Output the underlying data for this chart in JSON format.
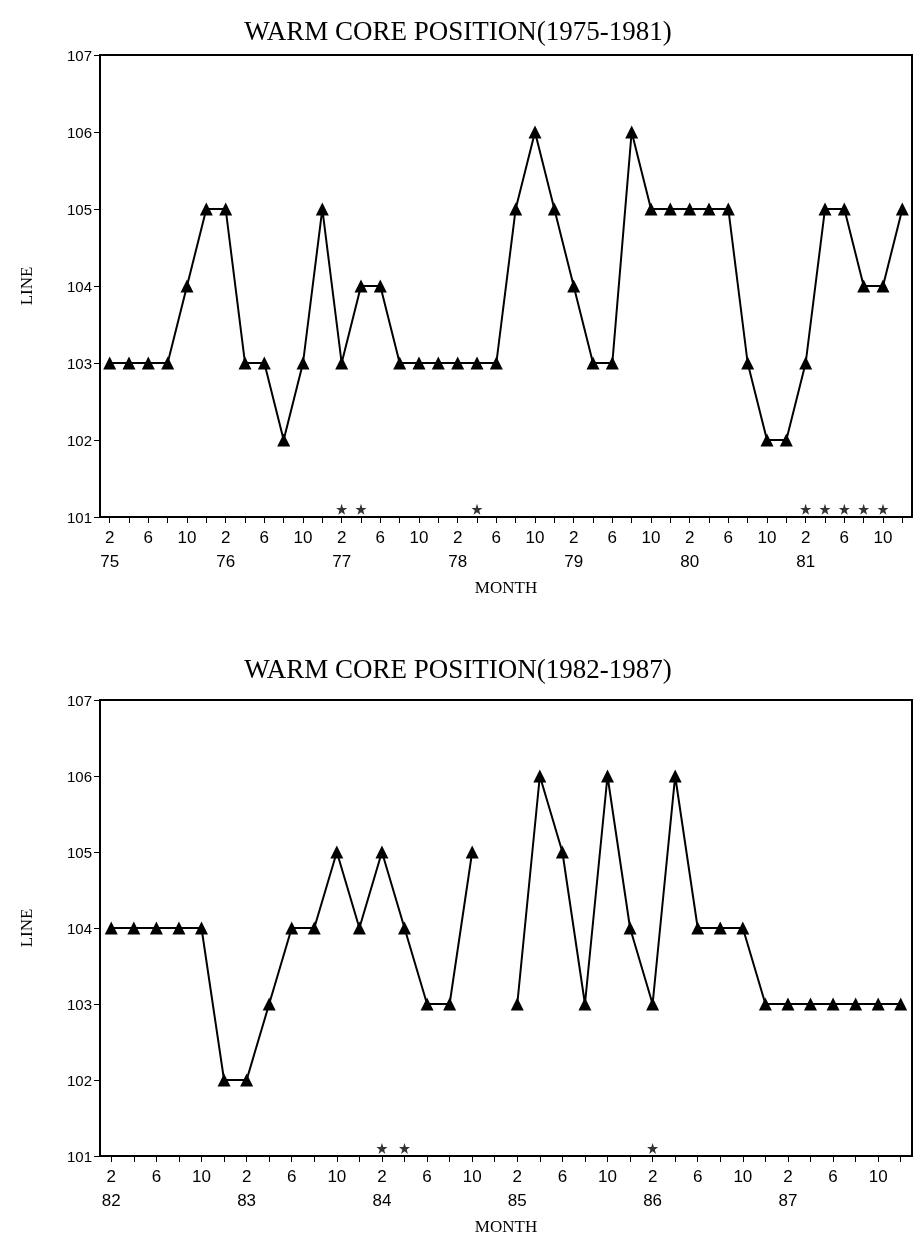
{
  "chart_data": [
    {
      "type": "line",
      "title": "WARM CORE POSITION(1975-1981)",
      "xlabel": "MONTH",
      "ylabel": "LINE",
      "marker": "triangle",
      "line_style": "solid",
      "grid": false,
      "x": [
        "1975-02",
        "1975-04",
        "1975-06",
        "1975-08",
        "1975-10",
        "1975-12",
        "1976-02",
        "1976-04",
        "1976-06",
        "1976-08",
        "1976-10",
        "1976-12",
        "1977-02",
        "1977-04",
        "1977-06",
        "1977-08",
        "1977-10",
        "1977-12",
        "1978-02",
        "1978-04",
        "1978-06",
        "1978-08",
        "1978-10",
        "1978-12",
        "1979-02",
        "1979-04",
        "1979-06",
        "1979-08",
        "1979-10",
        "1979-12",
        "1980-02",
        "1980-04",
        "1980-06",
        "1980-08",
        "1980-10",
        "1980-12",
        "1981-02",
        "1981-04",
        "1981-06",
        "1981-08",
        "1981-10",
        "1981-12"
      ],
      "series": [
        {
          "color": "#000000",
          "values": [
            103,
            103,
            103,
            103,
            104,
            105,
            105,
            103,
            103,
            102,
            103,
            105,
            103,
            104,
            104,
            103,
            103,
            103,
            103,
            103,
            103,
            105,
            106,
            105,
            104,
            103,
            103,
            106,
            105,
            105,
            105,
            105,
            105,
            103,
            102,
            102,
            103,
            105,
            105,
            104,
            104,
            105
          ]
        },
        {
          "type": "scatter",
          "marker": "star",
          "color": "#000000",
          "x": [
            "1977-02",
            "1977-04",
            "1978-04",
            "1981-02",
            "1981-04",
            "1981-06",
            "1981-08",
            "1981-10"
          ],
          "values": [
            101.1,
            101.1,
            101.1,
            101.1,
            101.1,
            101.1,
            101.1,
            101.1
          ]
        }
      ],
      "xlim": [
        "1975-01",
        "1982-01"
      ],
      "ylim": [
        101,
        107
      ],
      "yticks": [
        101,
        102,
        103,
        104,
        105,
        106,
        107
      ],
      "xticks": [
        {
          "value": "1975-02",
          "label": "2\n75"
        },
        {
          "value": "1975-04",
          "label": null
        },
        {
          "value": "1975-06",
          "label": "6"
        },
        {
          "value": "1975-08",
          "label": null
        },
        {
          "value": "1975-10",
          "label": "10"
        },
        {
          "value": "1975-12",
          "label": null
        },
        {
          "value": "1976-02",
          "label": "2\n76"
        },
        {
          "value": "1976-04",
          "label": null
        },
        {
          "value": "1976-06",
          "label": "6"
        },
        {
          "value": "1976-08",
          "label": null
        },
        {
          "value": "1976-10",
          "label": "10"
        },
        {
          "value": "1976-12",
          "label": null
        },
        {
          "value": "1977-02",
          "label": "2\n77"
        },
        {
          "value": "1977-04",
          "label": null
        },
        {
          "value": "1977-06",
          "label": "6"
        },
        {
          "value": "1977-08",
          "label": null
        },
        {
          "value": "1977-10",
          "label": "10"
        },
        {
          "value": "1977-12",
          "label": null
        },
        {
          "value": "1978-02",
          "label": "2\n78"
        },
        {
          "value": "1978-04",
          "label": null
        },
        {
          "value": "1978-06",
          "label": "6"
        },
        {
          "value": "1978-08",
          "label": null
        },
        {
          "value": "1978-10",
          "label": "10"
        },
        {
          "value": "1978-12",
          "label": null
        },
        {
          "value": "1979-02",
          "label": "2\n79"
        },
        {
          "value": "1979-04",
          "label": null
        },
        {
          "value": "1979-06",
          "label": "6"
        },
        {
          "value": "1979-08",
          "label": null
        },
        {
          "value": "1979-10",
          "label": "10"
        },
        {
          "value": "1979-12",
          "label": null
        },
        {
          "value": "1980-02",
          "label": "2\n80"
        },
        {
          "value": "1980-04",
          "label": null
        },
        {
          "value": "1980-06",
          "label": "6"
        },
        {
          "value": "1980-08",
          "label": null
        },
        {
          "value": "1980-10",
          "label": "10"
        },
        {
          "value": "1980-12",
          "label": null
        },
        {
          "value": "1981-02",
          "label": "2\n81"
        },
        {
          "value": "1981-04",
          "label": null
        },
        {
          "value": "1981-06",
          "label": "6"
        },
        {
          "value": "1981-08",
          "label": null
        },
        {
          "value": "1981-10",
          "label": "10"
        },
        {
          "value": "1981-12",
          "label": null
        }
      ]
    },
    {
      "type": "line",
      "title": "WARM CORE POSITION(1982-1987)",
      "xlabel": "MONTH",
      "ylabel": "LINE",
      "marker": "triangle",
      "line_style": "solid",
      "grid": false,
      "x": [
        "1982-02",
        "1982-04",
        "1982-06",
        "1982-08",
        "1982-10",
        "1982-12",
        "1983-02",
        "1983-04",
        "1983-06",
        "1983-08",
        "1983-10",
        "1983-12",
        "1984-02",
        "1984-04",
        "1984-06",
        "1984-08",
        "1984-10",
        "1984-12",
        "1985-02",
        "1985-04",
        "1985-06",
        "1985-08",
        "1985-10",
        "1985-12",
        "1986-02",
        "1986-04",
        "1986-06",
        "1986-08",
        "1986-10",
        "1986-12",
        "1987-02",
        "1987-04",
        "1987-06",
        "1987-08",
        "1987-10",
        "1987-12"
      ],
      "series": [
        {
          "color": "#000000",
          "values": [
            104,
            104,
            104,
            104,
            104,
            102,
            102,
            103,
            104,
            104,
            105,
            104,
            105,
            104,
            103,
            103,
            105,
            null,
            103,
            106,
            105,
            103,
            106,
            104,
            103,
            106,
            104,
            104,
            104,
            103,
            103,
            103,
            103,
            103,
            103,
            103
          ]
        },
        {
          "type": "scatter",
          "marker": "star",
          "color": "#000000",
          "x": [
            "1984-02",
            "1984-04",
            "1986-02"
          ],
          "values": [
            101.1,
            101.1,
            101.1
          ]
        }
      ],
      "xlim": [
        "1982-01",
        "1988-01"
      ],
      "ylim": [
        101,
        107
      ],
      "yticks": [
        101,
        102,
        103,
        104,
        105,
        106,
        107
      ],
      "xticks": [
        {
          "value": "1982-02",
          "label": "2\n82"
        },
        {
          "value": "1982-04",
          "label": null
        },
        {
          "value": "1982-06",
          "label": "6"
        },
        {
          "value": "1982-08",
          "label": null
        },
        {
          "value": "1982-10",
          "label": "10"
        },
        {
          "value": "1982-12",
          "label": null
        },
        {
          "value": "1983-02",
          "label": "2\n83"
        },
        {
          "value": "1983-04",
          "label": null
        },
        {
          "value": "1983-06",
          "label": "6"
        },
        {
          "value": "1983-08",
          "label": null
        },
        {
          "value": "1983-10",
          "label": "10"
        },
        {
          "value": "1983-12",
          "label": null
        },
        {
          "value": "1984-02",
          "label": "2\n84"
        },
        {
          "value": "1984-04",
          "label": null
        },
        {
          "value": "1984-06",
          "label": "6"
        },
        {
          "value": "1984-08",
          "label": null
        },
        {
          "value": "1984-10",
          "label": "10"
        },
        {
          "value": "1984-12",
          "label": null
        },
        {
          "value": "1985-02",
          "label": "2\n85"
        },
        {
          "value": "1985-04",
          "label": null
        },
        {
          "value": "1985-06",
          "label": "6"
        },
        {
          "value": "1985-08",
          "label": null
        },
        {
          "value": "1985-10",
          "label": "10"
        },
        {
          "value": "1985-12",
          "label": null
        },
        {
          "value": "1986-02",
          "label": "2\n86"
        },
        {
          "value": "1986-04",
          "label": null
        },
        {
          "value": "1986-06",
          "label": "6"
        },
        {
          "value": "1986-08",
          "label": null
        },
        {
          "value": "1986-10",
          "label": "10"
        },
        {
          "value": "1986-12",
          "label": null
        },
        {
          "value": "1987-02",
          "label": "2\n87"
        },
        {
          "value": "1987-04",
          "label": null
        },
        {
          "value": "1987-06",
          "label": "6"
        },
        {
          "value": "1987-08",
          "label": null
        },
        {
          "value": "1987-10",
          "label": "10"
        },
        {
          "value": "1987-12",
          "label": null
        }
      ]
    }
  ]
}
